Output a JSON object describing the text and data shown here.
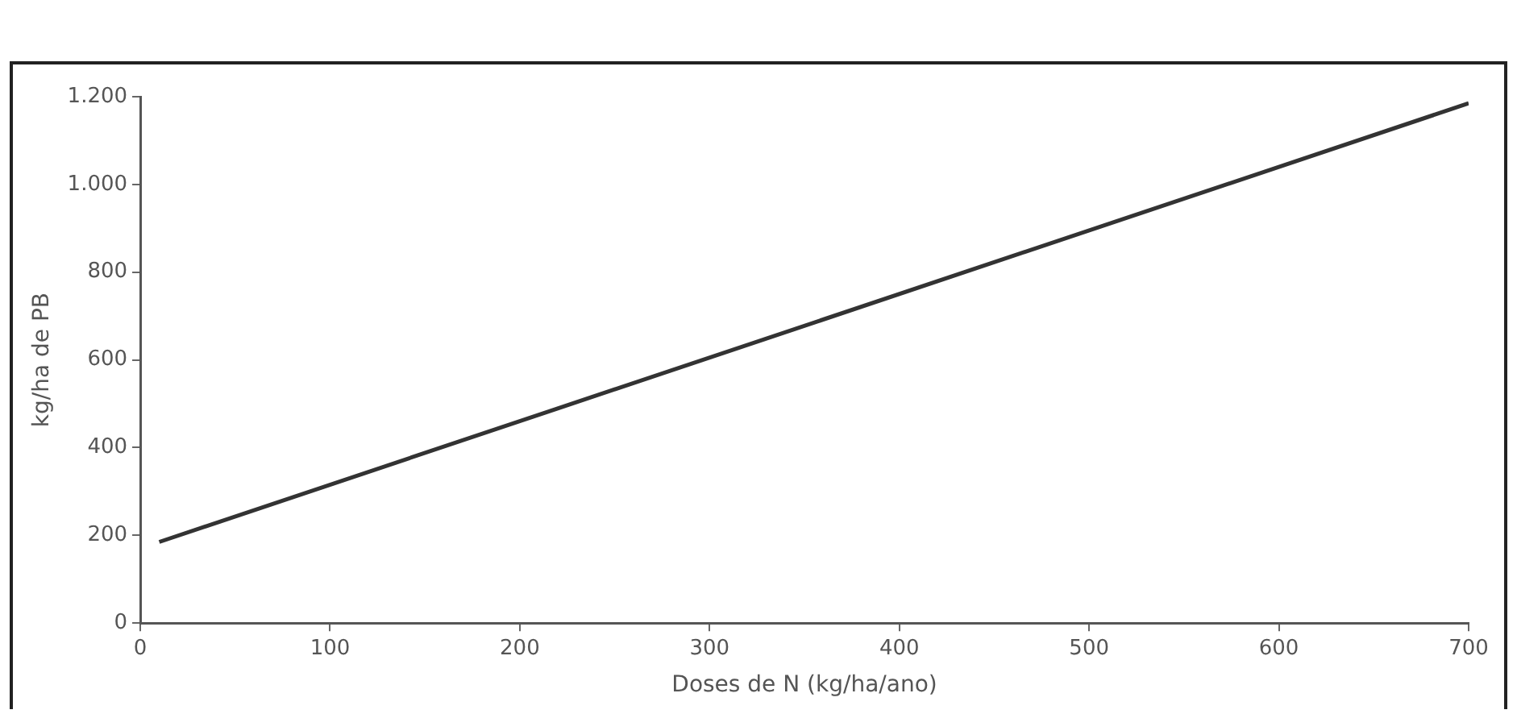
{
  "chart_data": {
    "type": "line",
    "xlabel": "Doses de N (kg/ha/ano)",
    "ylabel": "kg/ha de PB",
    "series": [
      {
        "color": "#333333",
        "x": [
          10,
          700
        ],
        "values": [
          185,
          1185
        ]
      }
    ],
    "xlim": [
      0,
      700
    ],
    "xticks": [
      0,
      100,
      200,
      300,
      400,
      500,
      600,
      700
    ],
    "ylim": [
      0,
      1200
    ],
    "yticks": [
      {
        "value": 0,
        "label": "0"
      },
      {
        "value": 200,
        "label": "200"
      },
      {
        "value": 400,
        "label": "400"
      },
      {
        "value": 600,
        "label": "600"
      },
      {
        "value": 800,
        "label": "800"
      },
      {
        "value": 1000,
        "label": "1.000"
      },
      {
        "value": 1200,
        "label": "1.200"
      }
    ],
    "grid": false,
    "legend": false,
    "marker": "none",
    "line_style": "solid"
  }
}
